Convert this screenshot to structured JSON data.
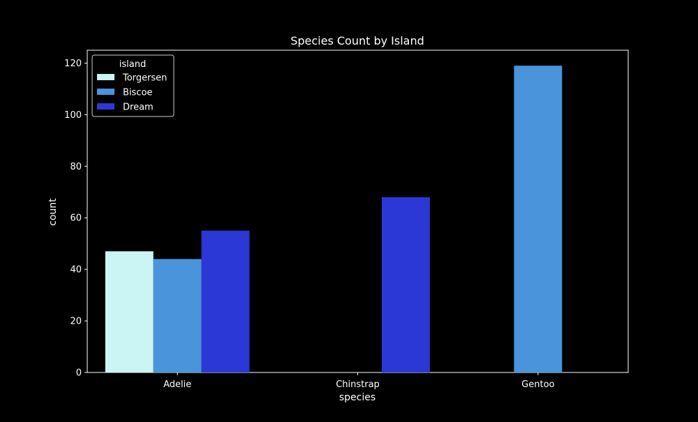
{
  "chart_data": {
    "type": "bar",
    "title": "Species Count by Island",
    "xlabel": "species",
    "ylabel": "count",
    "categories": [
      "Adelie",
      "Chinstrap",
      "Gentoo"
    ],
    "series": [
      {
        "name": "Torgersen",
        "color": "#cbf5f5",
        "values": [
          47,
          null,
          null
        ]
      },
      {
        "name": "Biscoe",
        "color": "#4a94dc",
        "values": [
          44,
          null,
          119
        ]
      },
      {
        "name": "Dream",
        "color": "#2b38d5",
        "values": [
          55,
          68,
          null
        ]
      }
    ],
    "ylim": [
      0,
      125
    ],
    "yticks": [
      0,
      20,
      40,
      60,
      80,
      100,
      120
    ],
    "legend": {
      "title": "island",
      "placement": "top-left"
    },
    "grid": false,
    "background": "#000000",
    "foreground": "#ffffff"
  }
}
